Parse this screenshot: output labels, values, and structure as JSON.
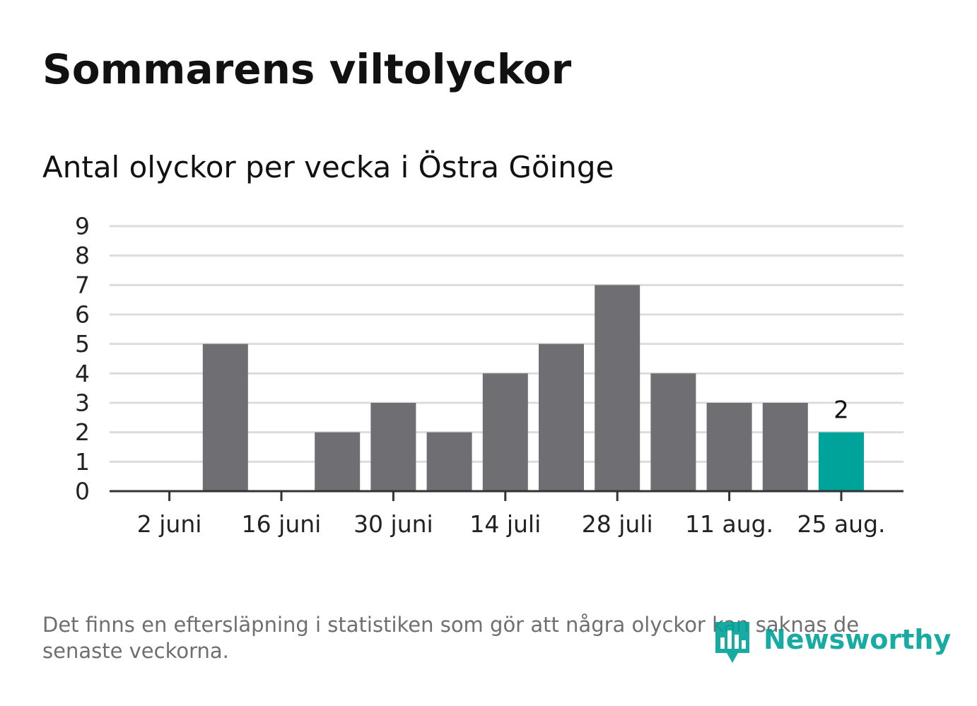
{
  "title": "Sommarens viltolyckor",
  "subtitle": "Antal olyckor per vecka i Östra Göinge",
  "footnote": "Det finns en eftersläpning i statistiken som gör att några olyckor kan saknas de senaste veckorna.",
  "brand": {
    "name": "Newsworthy",
    "icon": "newsworthy-bar-chart-logo-icon",
    "color": "#00a39a"
  },
  "colors": {
    "bar": "#6f6e73",
    "highlight": "#00a39a",
    "grid": "#dcdcdc",
    "axis": "#333333"
  },
  "chart_data": {
    "type": "bar",
    "title": "Sommarens viltolyckor",
    "subtitle": "Antal olyckor per vecka i Östra Göinge",
    "xlabel": "",
    "ylabel": "",
    "ylim": [
      0,
      9
    ],
    "yticks": [
      0,
      1,
      2,
      3,
      4,
      5,
      6,
      7,
      8,
      9
    ],
    "grid": true,
    "legend": "none",
    "x_tick_labels": [
      {
        "index": 0,
        "label": "2 juni"
      },
      {
        "index": 2,
        "label": "16 juni"
      },
      {
        "index": 4,
        "label": "30 juni"
      },
      {
        "index": 6,
        "label": "14 juli"
      },
      {
        "index": 8,
        "label": "28 juli"
      },
      {
        "index": 10,
        "label": "11 aug."
      },
      {
        "index": 12,
        "label": "25 aug."
      }
    ],
    "values": [
      0,
      5,
      0,
      2,
      3,
      2,
      4,
      5,
      7,
      4,
      3,
      3,
      2
    ],
    "highlight_index": 12,
    "data_labels": [
      {
        "index": 12,
        "text": "2"
      }
    ]
  }
}
